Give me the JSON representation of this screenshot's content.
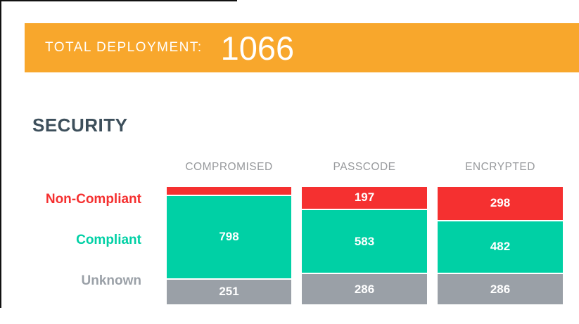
{
  "window": {
    "border_color": "#111111",
    "background": "#FFFFFF"
  },
  "banner": {
    "label": "TOTAL DEPLOYMENT:",
    "value": "1066",
    "background": "#F8A72C",
    "text_color": "#FFFFFF"
  },
  "section": {
    "title": "SECURITY",
    "title_color": "#3D4F5B"
  },
  "chart_data": {
    "type": "bar",
    "variant": "stacked-vertical-100pct",
    "title": "SECURITY",
    "total_per_category": 1066,
    "categories": [
      "COMPROMISED",
      "PASSCODE",
      "ENCRYPTED"
    ],
    "series": [
      {
        "name": "Non-Compliant",
        "color": "#F53030",
        "values": [
          17,
          197,
          298
        ],
        "value_labels": [
          "",
          "197",
          "298"
        ]
      },
      {
        "name": "Compliant",
        "color": "#00D0A5",
        "values": [
          798,
          583,
          482
        ],
        "value_labels": [
          "798",
          "583",
          "482"
        ]
      },
      {
        "name": "Unknown",
        "color": "#9AA0A7",
        "values": [
          251,
          286,
          286
        ],
        "value_labels": [
          "251",
          "286",
          "286"
        ]
      }
    ],
    "category_label_color": "#97999C",
    "value_label_color": "#FFFFFF",
    "legend_position": "row labels at left of chart",
    "grid": false
  }
}
